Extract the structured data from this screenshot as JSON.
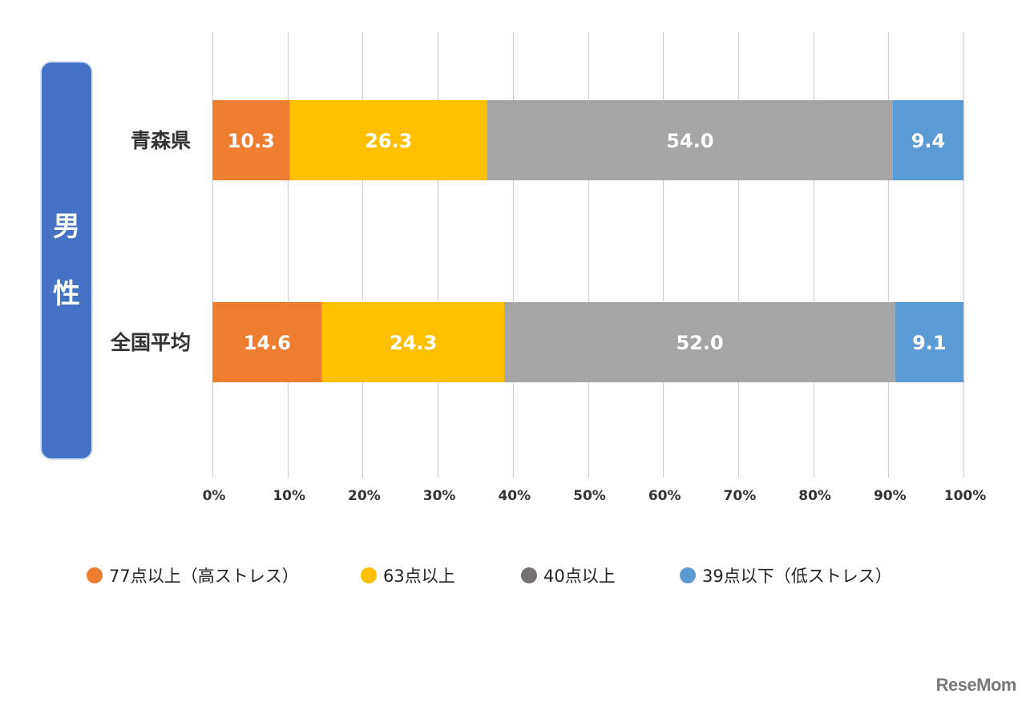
{
  "group_label": [
    "男",
    "性"
  ],
  "chart_data": {
    "type": "bar",
    "orientation": "horizontal",
    "stacked": true,
    "categories": [
      "青森県",
      "全国平均"
    ],
    "series": [
      {
        "name": "77点以上（高ストレス）",
        "color": "#ed7d31",
        "values": [
          10.3,
          14.6
        ],
        "labels": [
          "10.3",
          "14.6"
        ]
      },
      {
        "name": "63点以上",
        "color": "#ffc000",
        "values": [
          26.3,
          24.3
        ],
        "labels": [
          "26.3",
          "24.3"
        ]
      },
      {
        "name": "40点以上",
        "color": "#a5a5a5",
        "values": [
          54.0,
          52.0
        ],
        "labels": [
          "54.0",
          "52.0"
        ]
      },
      {
        "name": "39点以下（低ストレス）",
        "color": "#5b9bd5",
        "values": [
          9.4,
          9.1
        ],
        "labels": [
          "9.4",
          "9.1"
        ]
      }
    ],
    "xlim": [
      0,
      100
    ],
    "x_ticks": [
      0,
      10,
      20,
      30,
      40,
      50,
      60,
      70,
      80,
      90,
      100
    ],
    "x_tick_labels": [
      "0%",
      "10%",
      "20%",
      "30%",
      "40%",
      "50%",
      "60%",
      "70%",
      "80%",
      "90%",
      "100%"
    ],
    "grid": true,
    "legend_position": "bottom",
    "legend_marker_colors": [
      "#ed7d31",
      "#ffc000",
      "#767171",
      "#5b9bd5"
    ]
  },
  "watermark": "ReseMom"
}
